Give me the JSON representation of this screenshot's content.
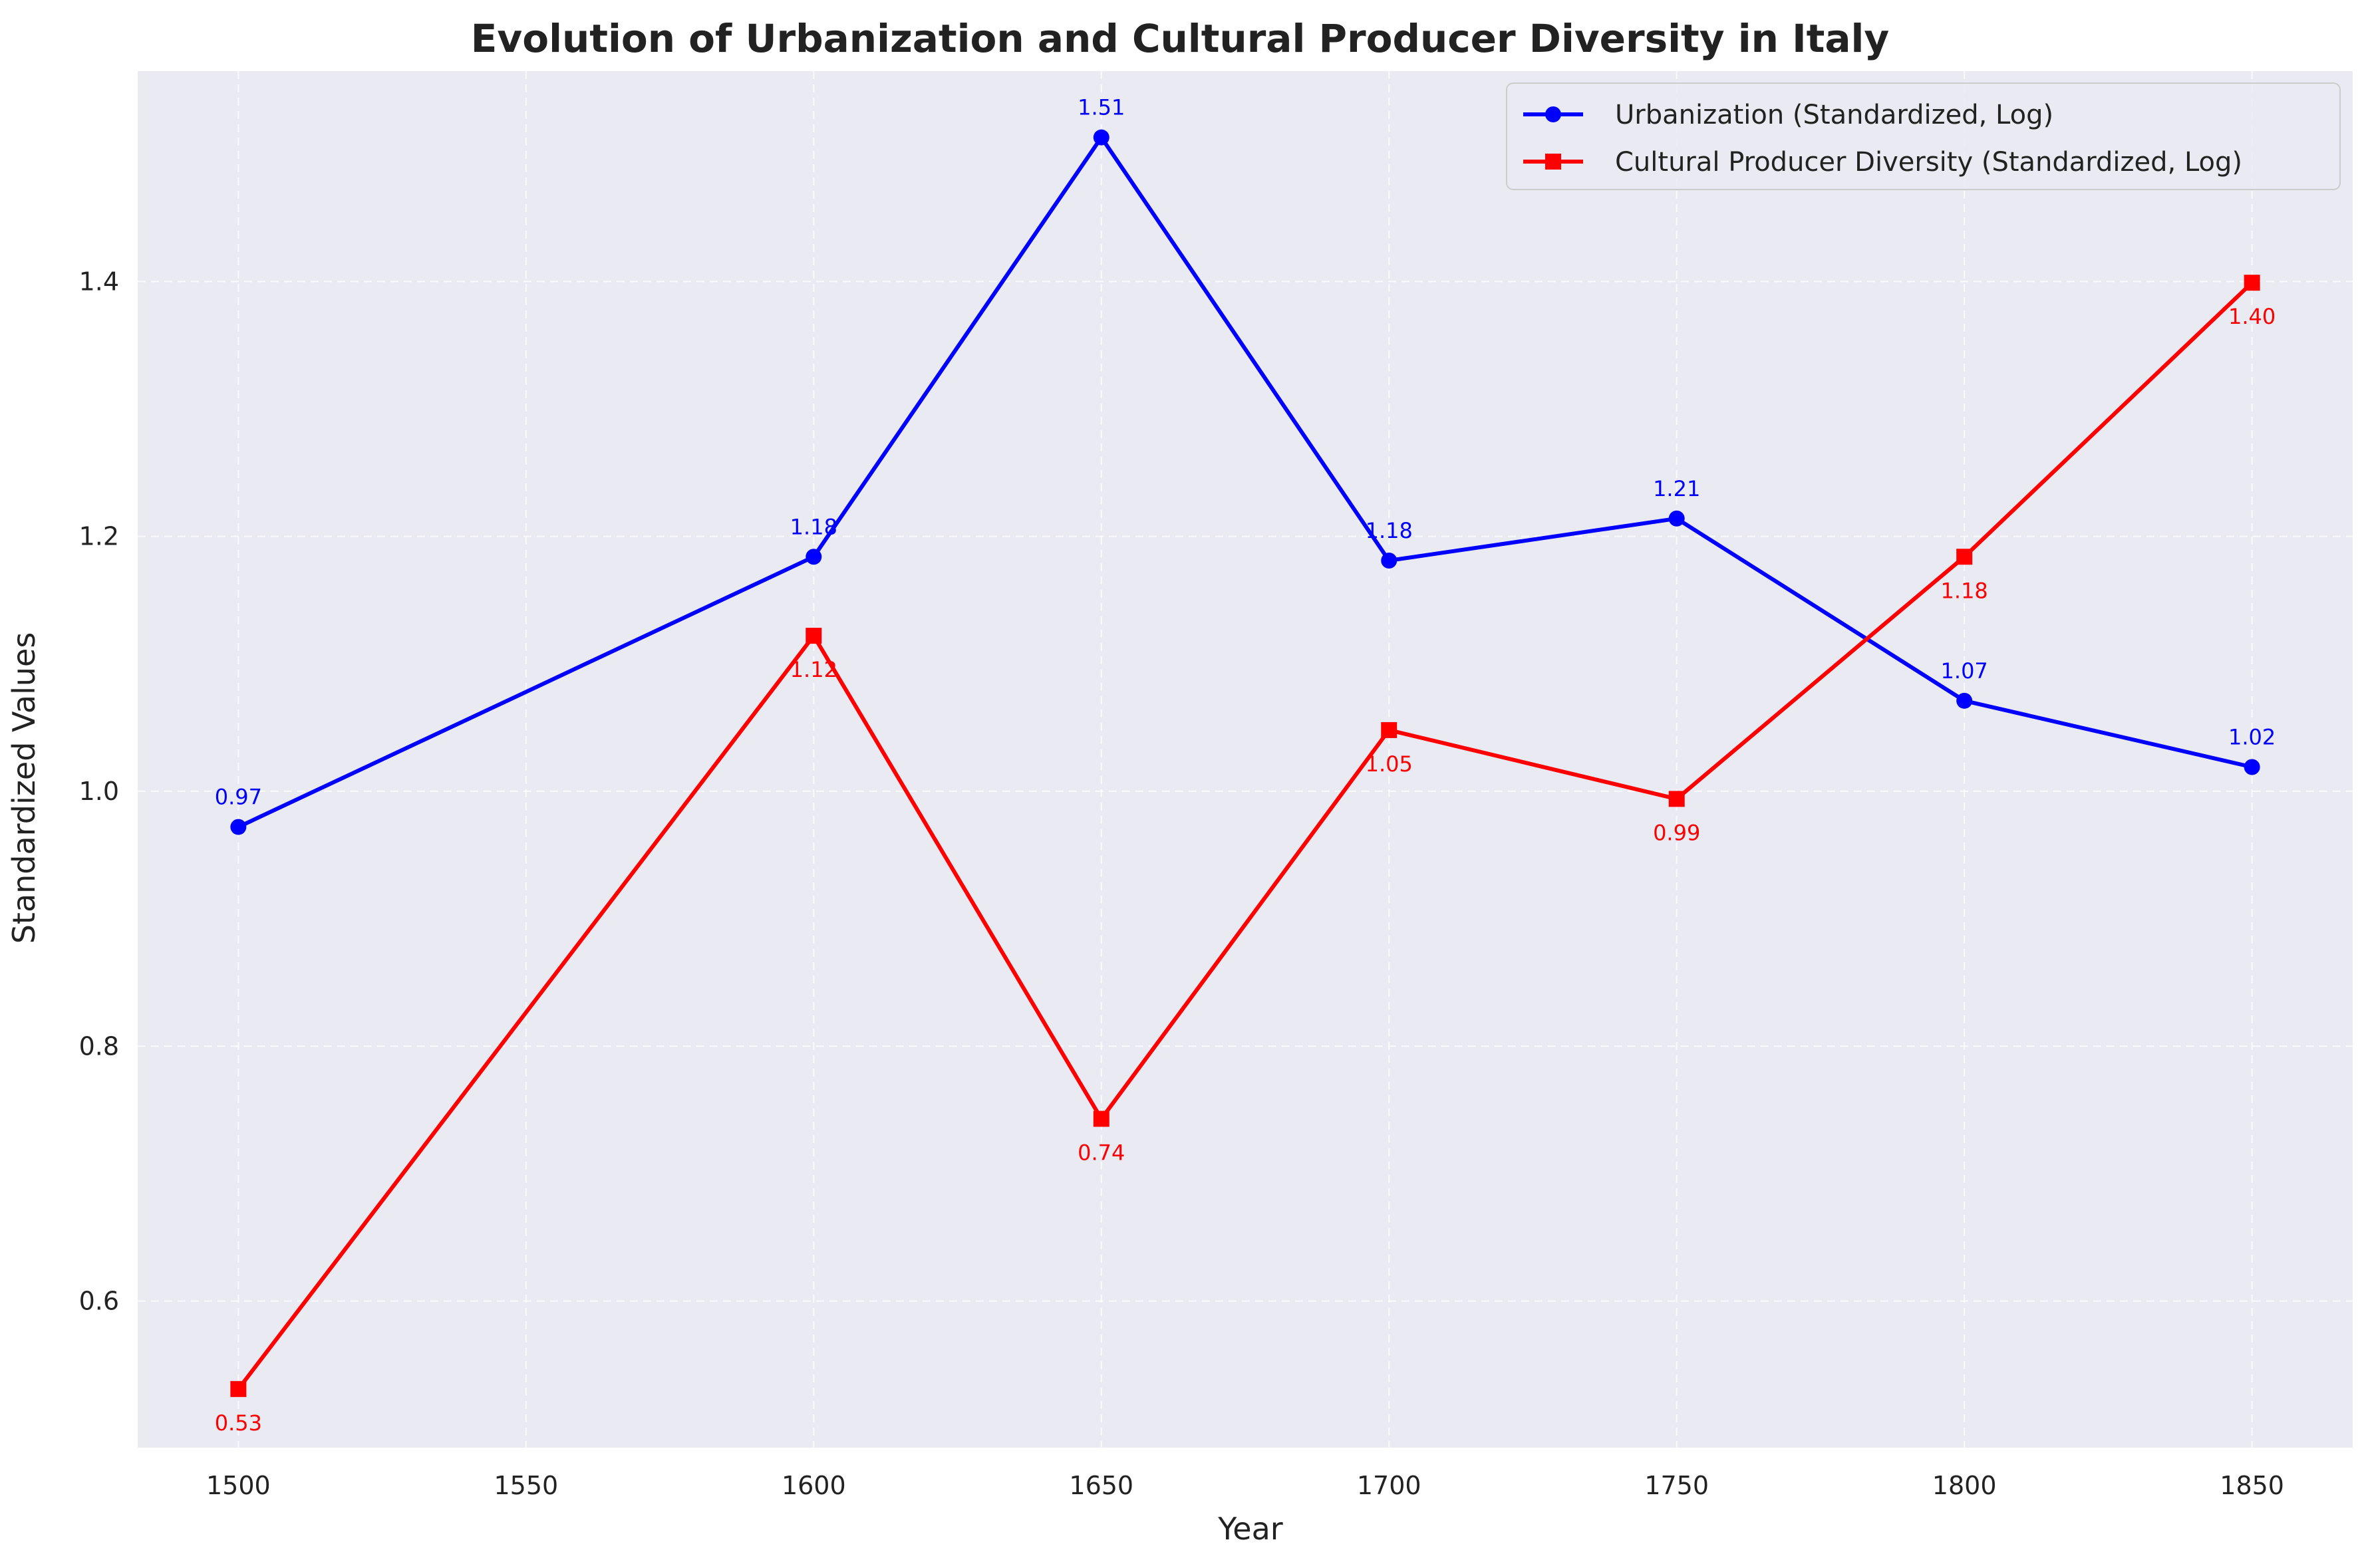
{
  "chart_data": {
    "type": "line",
    "title": "Evolution of Urbanization and Cultural Producer Diversity in Italy",
    "xlabel": "Year",
    "ylabel": "Standardized Values",
    "xlim": [
      1482.5,
      1867.5
    ],
    "ylim": [
      0.485,
      1.565
    ],
    "xticks": [
      1500,
      1550,
      1600,
      1650,
      1700,
      1750,
      1800,
      1850
    ],
    "yticks": [
      0.6,
      0.8,
      1.0,
      1.2,
      1.4
    ],
    "grid": true,
    "legend_position": "top-right",
    "x": [
      1500,
      1600,
      1650,
      1700,
      1750,
      1800,
      1850
    ],
    "series": [
      {
        "name": "Urbanization (Standardized, Log)",
        "color": "#0000ff",
        "marker": "circle",
        "label_position": "above",
        "values": [
          0.972,
          1.184,
          1.513,
          1.181,
          1.214,
          1.071,
          1.019
        ],
        "labels": [
          "0.97",
          "1.18",
          "1.51",
          "1.18",
          "1.21",
          "1.07",
          "1.02"
        ]
      },
      {
        "name": "Cultural Producer Diversity (Standardized, Log)",
        "color": "#ff0000",
        "marker": "square",
        "label_position": "below",
        "values": [
          0.531,
          1.122,
          0.743,
          1.048,
          0.994,
          1.184,
          1.399
        ],
        "labels": [
          "0.53",
          "1.12",
          "0.74",
          "1.05",
          "0.99",
          "1.18",
          "1.40"
        ]
      }
    ]
  }
}
